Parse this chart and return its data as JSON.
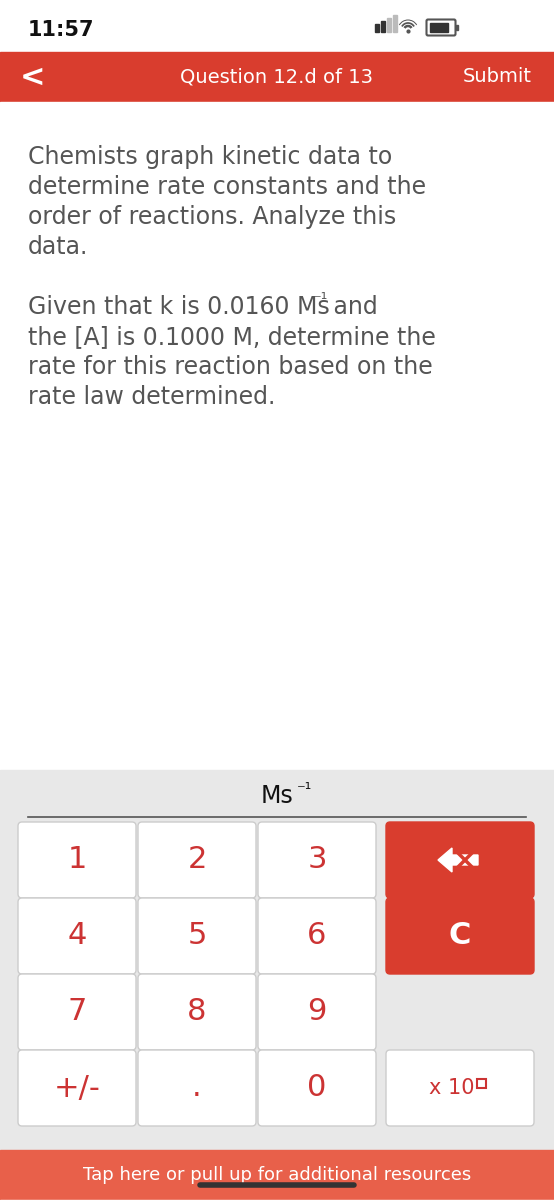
{
  "bg_color": "#f2f2f2",
  "white": "#ffffff",
  "red": "#d93d2e",
  "light_red": "#e8604a",
  "text_dark": "#555555",
  "text_white": "#ffffff",
  "time": "11:57",
  "header_text": "Question 12.d of 13",
  "submit_text": "Submit",
  "body_line1": "Chemists graph kinetic data to",
  "body_line2": "determine rate constants and the",
  "body_line3": "order of reactions. Analyze this",
  "body_line4": "data.",
  "body2_line1a": "Given that k is 0.0160 Ms",
  "body2_line1b": "⁻¹",
  "body2_line1c": " and",
  "body2_line2": "the [A] is 0.1000 M, determine the",
  "body2_line3": "rate for this reaction based on the",
  "body2_line4": "rate law determined.",
  "unit_label_a": "Ms",
  "unit_label_b": "⁻¹",
  "keypad_numbers": [
    "1",
    "2",
    "3",
    "4",
    "5",
    "6",
    "7",
    "8",
    "9",
    "+/-",
    ".",
    "0"
  ],
  "footer_text": "Tap here or pull up for additional resources",
  "footer_bg": "#e8604a",
  "keypad_bg": "#e8e8e8",
  "btn_white": "#ffffff",
  "btn_red": "#d93d2e",
  "btn_red_text": "#cc3333",
  "btn_border": "#cccccc"
}
